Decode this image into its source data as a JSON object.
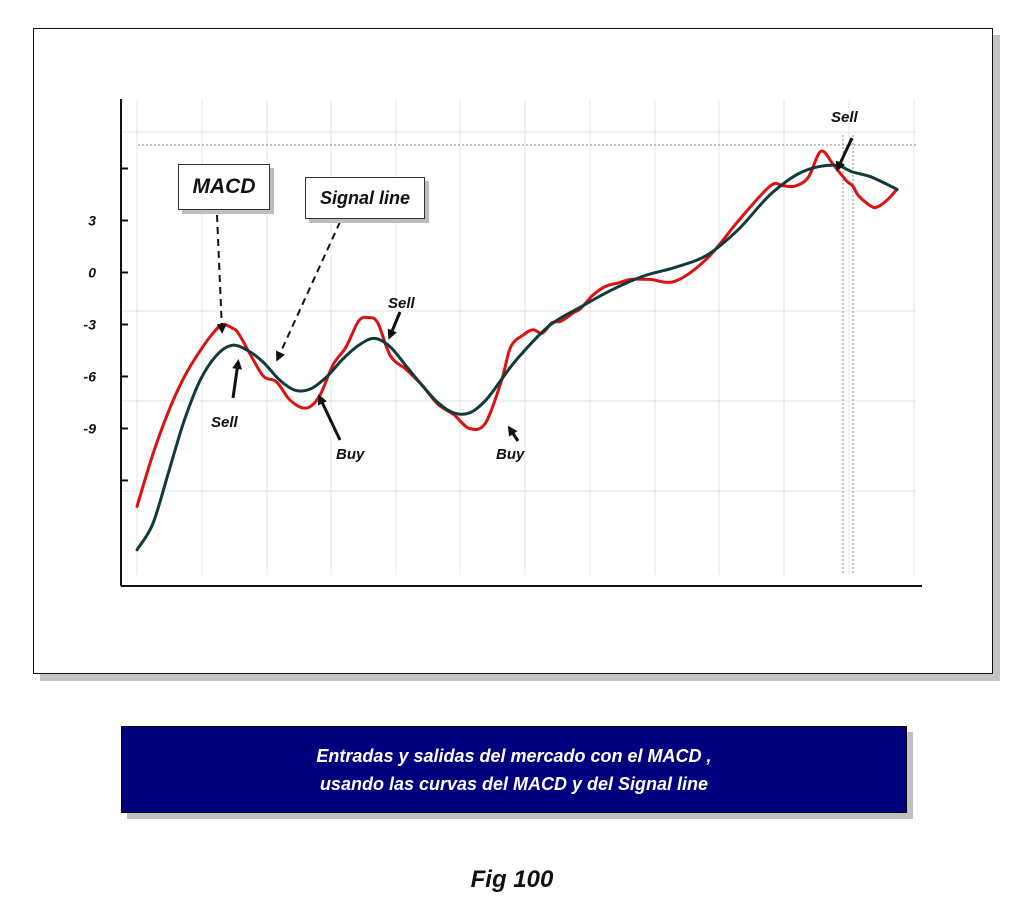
{
  "chart_data": {
    "type": "line",
    "ylim": [
      -19,
      10
    ],
    "x_range": [
      0,
      240
    ],
    "grid": true,
    "y_ticks": [
      {
        "value": 6,
        "label": ""
      },
      {
        "value": 3,
        "label": "3"
      },
      {
        "value": 0,
        "label": "0"
      },
      {
        "value": -3,
        "label": "-3"
      },
      {
        "value": -6,
        "label": "-6"
      },
      {
        "value": -9,
        "label": "-9"
      },
      {
        "value": -12,
        "label": ""
      }
    ],
    "series": [
      {
        "name": "MACD",
        "color": "#dd1111",
        "x": [
          0,
          5,
          10,
          15,
          20,
          24,
          27,
          30,
          32,
          36,
          40,
          44,
          48,
          52,
          55,
          58,
          62,
          66,
          70,
          73,
          76,
          80,
          85,
          90,
          95,
          100,
          105,
          110,
          115,
          118,
          122,
          125,
          128,
          131,
          134,
          138,
          140,
          144,
          148,
          152,
          156,
          162,
          170,
          180,
          190,
          200,
          204,
          208,
          212,
          216,
          220,
          224,
          226,
          228,
          232,
          234,
          237,
          240
        ],
        "values": [
          -13.5,
          -10.5,
          -8,
          -6,
          -4.5,
          -3.5,
          -3,
          -3.2,
          -3.5,
          -4.8,
          -6,
          -6.3,
          -7.3,
          -7.8,
          -7.7,
          -7,
          -5.3,
          -4.3,
          -2.8,
          -2.6,
          -2.9,
          -4.8,
          -5.6,
          -6.5,
          -7.6,
          -8.2,
          -9.0,
          -8.7,
          -6.3,
          -4.3,
          -3.6,
          -3.3,
          -3.5,
          -2.9,
          -2.8,
          -2.3,
          -2.1,
          -1.3,
          -0.8,
          -0.6,
          -0.4,
          -0.4,
          -0.5,
          0.8,
          3,
          5,
          5,
          5,
          5.5,
          7,
          6.2,
          5.3,
          5,
          4.4,
          3.8,
          3.8,
          4.2,
          4.8
        ]
      },
      {
        "name": "Signal line",
        "color": "#0f3b3b",
        "x": [
          0,
          5,
          10,
          15,
          20,
          25,
          30,
          35,
          40,
          45,
          50,
          55,
          60,
          65,
          70,
          75,
          80,
          85,
          90,
          95,
          100,
          105,
          110,
          115,
          120,
          130,
          140,
          150,
          160,
          170,
          180,
          190,
          200,
          210,
          220,
          226,
          232,
          240
        ],
        "values": [
          -16,
          -14.5,
          -11.5,
          -8.5,
          -6.2,
          -4.8,
          -4.2,
          -4.5,
          -5.2,
          -6.2,
          -6.8,
          -6.7,
          -6.0,
          -5.0,
          -4.2,
          -3.8,
          -4.3,
          -5.4,
          -6.5,
          -7.5,
          -8.1,
          -8.1,
          -7.4,
          -6.2,
          -5.0,
          -3.1,
          -2.0,
          -1.0,
          -0.2,
          0.3,
          1.0,
          2.5,
          4.5,
          5.8,
          6.2,
          5.8,
          5.5,
          4.8
        ]
      }
    ]
  },
  "annotations": {
    "sell_1": "Sell",
    "buy_1": "Buy",
    "sell_2": "Sell",
    "buy_2": "Buy",
    "sell_3": "Sell"
  },
  "callouts": {
    "macd": "MACD",
    "signal": "Signal line"
  },
  "caption": {
    "line1": "Entradas y salidas del mercado con el MACD ,",
    "line2": "usando las curvas del MACD y  del Signal line"
  },
  "figure_label": "Fig 100"
}
